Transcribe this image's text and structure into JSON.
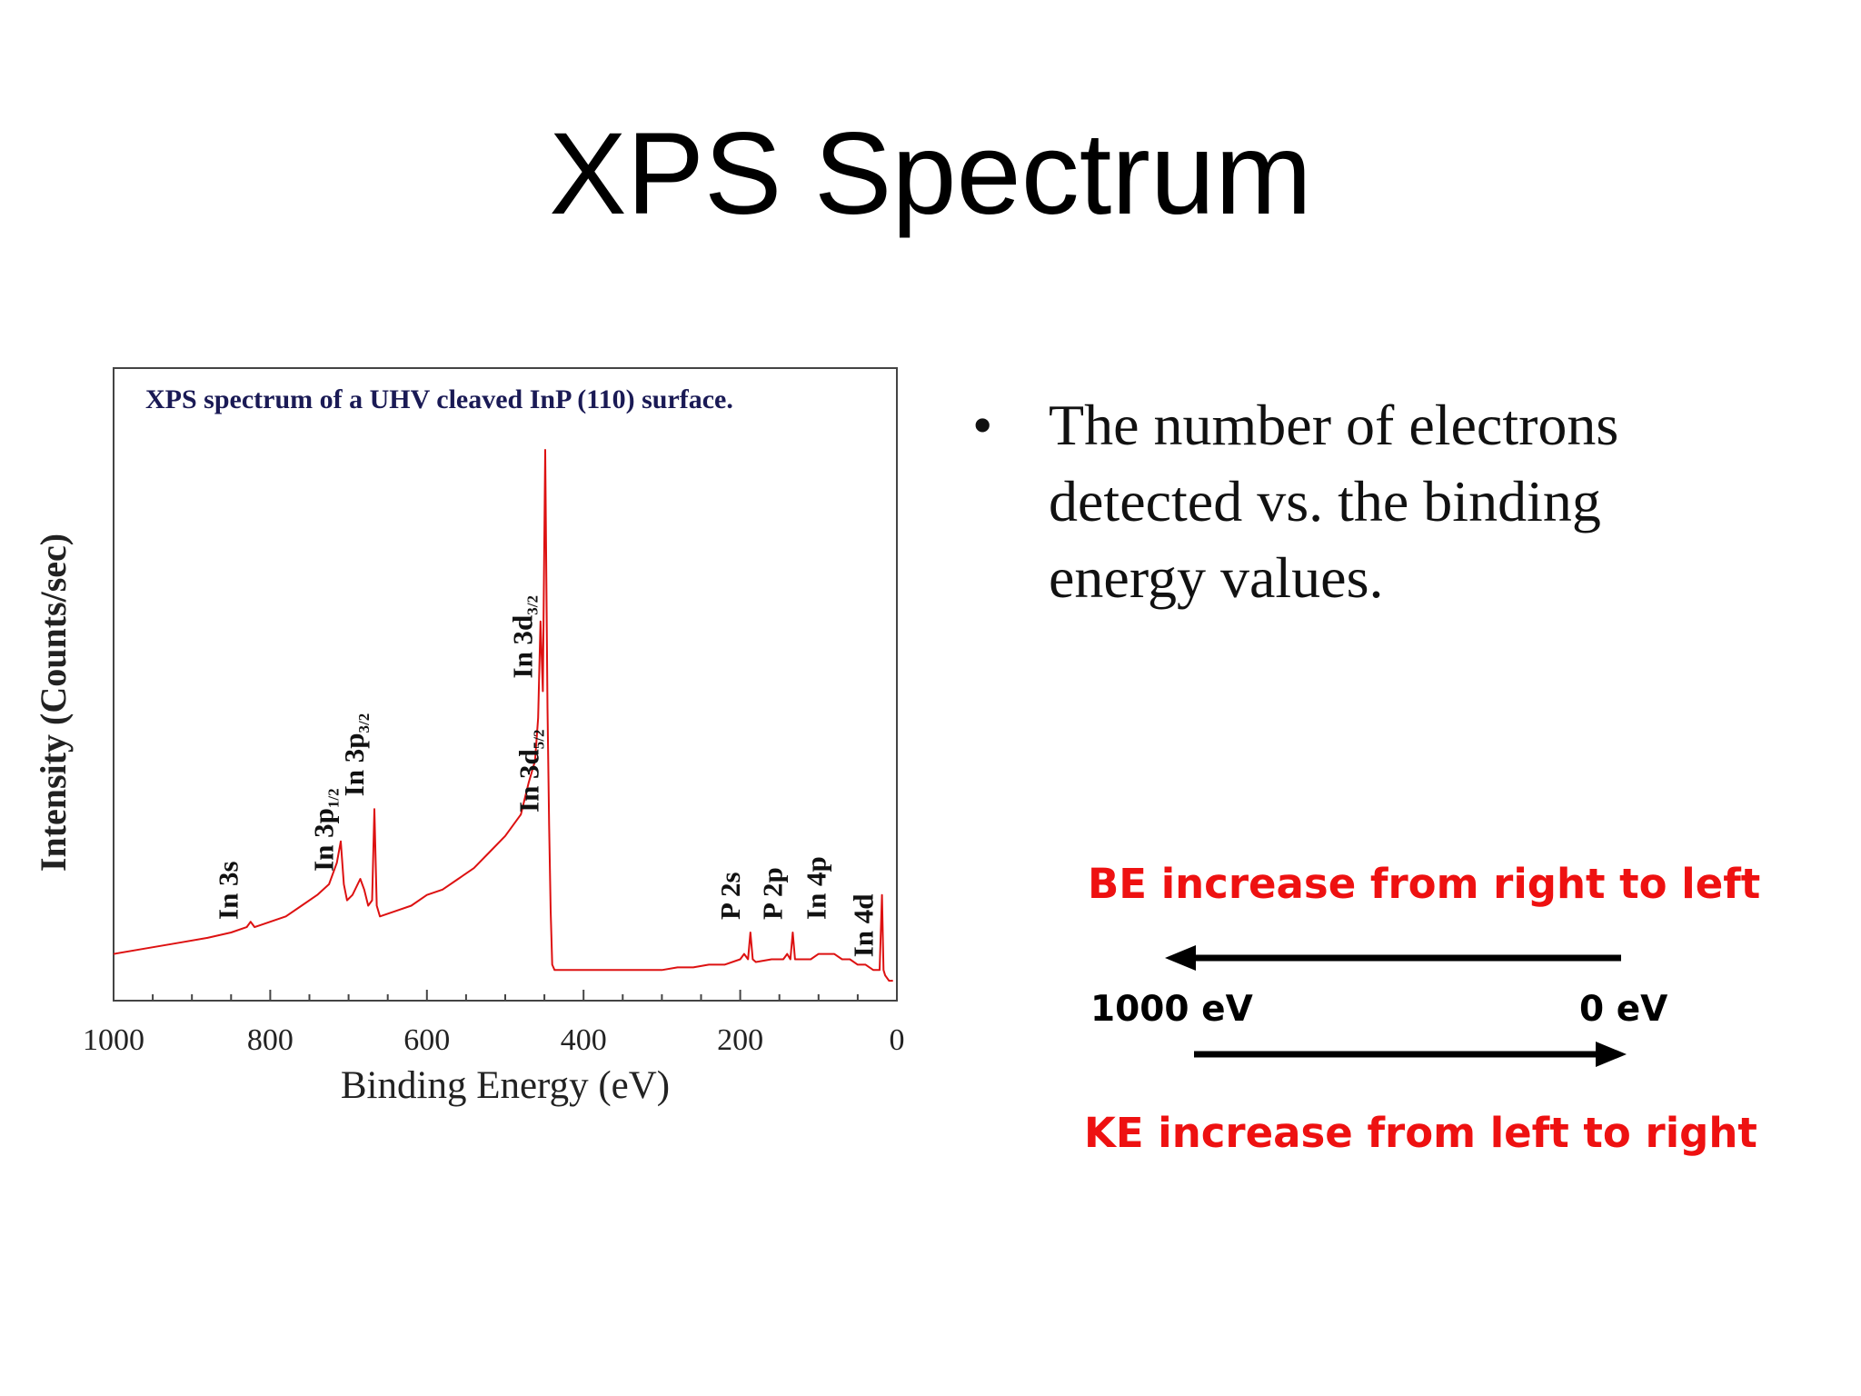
{
  "slide": {
    "title": "XPS Spectrum",
    "bullet": "The number of electrons detected vs. the binding energy values.",
    "bullet_marker": "•",
    "be_label": "BE increase from right to left",
    "ke_label": "KE increase from left to right",
    "left_energy": "1000 eV",
    "right_energy": "0 eV",
    "accent_color": "#ee1111"
  },
  "chart_data": {
    "type": "line",
    "title": "XPS spectrum of a UHV cleaved InP (110) surface.",
    "xlabel": "Binding Energy (eV)",
    "ylabel": "Intensity (Counts/sec)",
    "xlim": [
      1000,
      0
    ],
    "x_reversed": true,
    "x_ticks": [
      1000,
      800,
      600,
      400,
      200,
      0
    ],
    "y_ticks_shown": false,
    "grid": false,
    "series_color": "#dd1111",
    "series": [
      {
        "values_note": "relative intensity (no y tick labels shown)",
        "x": [
          1000,
          960,
          920,
          880,
          850,
          830,
          825,
          820,
          800,
          780,
          760,
          740,
          725,
          715,
          710,
          706,
          702,
          695,
          685,
          680,
          675,
          670,
          667,
          664,
          660,
          640,
          620,
          600,
          580,
          560,
          540,
          520,
          500,
          480,
          470,
          462,
          458,
          455,
          452,
          449,
          446,
          444,
          442,
          440,
          437,
          432,
          420,
          400,
          380,
          360,
          340,
          320,
          300,
          280,
          260,
          240,
          220,
          200,
          195,
          190,
          187,
          184,
          180,
          160,
          145,
          140,
          136,
          133,
          130,
          125,
          110,
          100,
          90,
          80,
          70,
          60,
          50,
          40,
          30,
          22,
          19,
          17,
          15,
          10,
          5
        ],
        "y": [
          0.06,
          0.07,
          0.08,
          0.09,
          0.1,
          0.11,
          0.12,
          0.11,
          0.12,
          0.13,
          0.15,
          0.17,
          0.19,
          0.23,
          0.27,
          0.19,
          0.16,
          0.17,
          0.2,
          0.18,
          0.15,
          0.16,
          0.33,
          0.15,
          0.13,
          0.14,
          0.15,
          0.17,
          0.18,
          0.2,
          0.22,
          0.25,
          0.28,
          0.32,
          0.38,
          0.42,
          0.5,
          0.68,
          0.55,
          1.0,
          0.52,
          0.3,
          0.14,
          0.04,
          0.03,
          0.03,
          0.03,
          0.03,
          0.03,
          0.03,
          0.03,
          0.03,
          0.03,
          0.035,
          0.035,
          0.04,
          0.04,
          0.05,
          0.06,
          0.05,
          0.1,
          0.05,
          0.045,
          0.05,
          0.05,
          0.06,
          0.05,
          0.1,
          0.05,
          0.05,
          0.05,
          0.06,
          0.06,
          0.06,
          0.05,
          0.05,
          0.04,
          0.04,
          0.03,
          0.03,
          0.17,
          0.03,
          0.02,
          0.01,
          0.01
        ]
      }
    ],
    "peak_labels": [
      {
        "main": "In 3s",
        "sub": "",
        "x": 828
      },
      {
        "main": "In 3p",
        "sub": "1/2",
        "x": 706
      },
      {
        "main": "In 3p",
        "sub": "3/2",
        "x": 667
      },
      {
        "main": "In 3d",
        "sub": "3/2",
        "x": 452
      },
      {
        "main": "In 3d",
        "sub": "5/2",
        "x": 444
      },
      {
        "main": "P 2s",
        "sub": "",
        "x": 187
      },
      {
        "main": "P 2p",
        "sub": "",
        "x": 133
      },
      {
        "main": "In 4p",
        "sub": "",
        "x": 77
      },
      {
        "main": "In 4d",
        "sub": "",
        "x": 17
      }
    ]
  }
}
